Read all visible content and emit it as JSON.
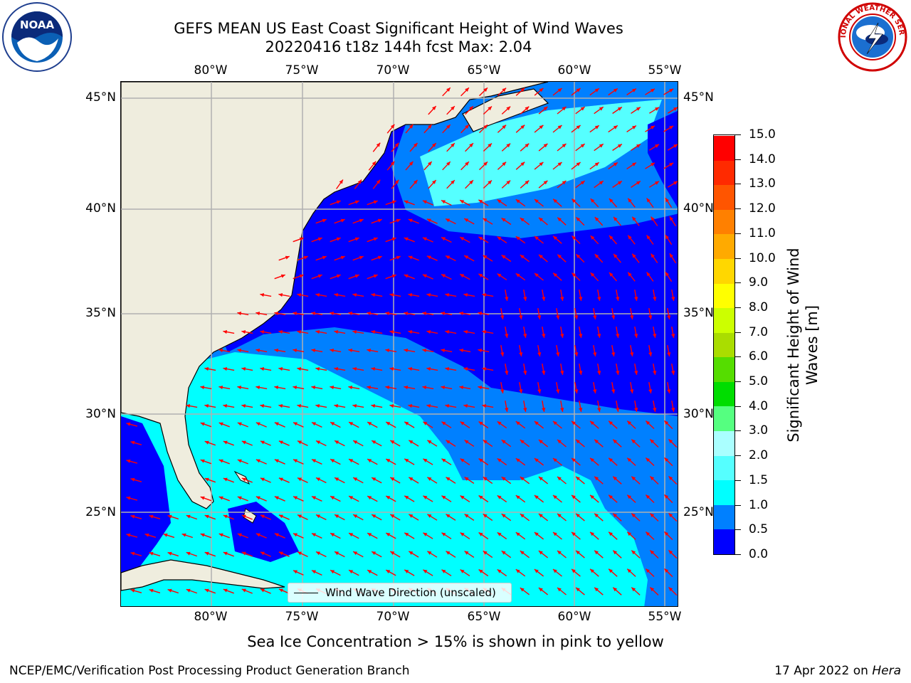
{
  "title_line1": "GEFS MEAN US East Coast Significant Height of Wind Waves",
  "title_line2": "20220416 t18z 144h fcst   Max: 2.04",
  "logos": {
    "left": {
      "icon": "noaa-logo",
      "text": "NOAA"
    },
    "right": {
      "icon": "nws-logo",
      "text": "NATIONAL WEATHER SERVICE"
    }
  },
  "longitude_ticks": [
    "80°W",
    "75°W",
    "70°W",
    "65°W",
    "60°W",
    "55°W"
  ],
  "latitude_ticks": [
    "45°N",
    "40°N",
    "35°N",
    "30°N",
    "25°N"
  ],
  "map": {
    "land_color": "#efedde",
    "grid_color": "#b0b0b0",
    "arrow_color": "#ff0000",
    "legend_label": "Wind Wave Direction (unscaled)"
  },
  "colorbar": {
    "title_line1": "Significant Height of Wind",
    "title_line2": "Waves [m]",
    "tick_labels": [
      "0.0",
      "0.5",
      "1.0",
      "1.5",
      "2.0",
      "3.0",
      "4.0",
      "5.0",
      "6.0",
      "7.0",
      "8.0",
      "9.0",
      "10.0",
      "11.0",
      "12.0",
      "13.0",
      "14.0",
      "15.0"
    ],
    "colors": [
      "#0000ff",
      "#0080ff",
      "#00ffff",
      "#55ffff",
      "#aaffff",
      "#55ff80",
      "#00dd00",
      "#55dd00",
      "#aadd00",
      "#ccff00",
      "#ffff00",
      "#ffd700",
      "#ffaa00",
      "#ff8000",
      "#ff5500",
      "#ff2a00",
      "#ff0000"
    ]
  },
  "caption": "Sea Ice Concentration > 15% is shown in pink to yellow",
  "footer_left": "NCEP/EMC/Verification Post Processing Product Generation Branch",
  "footer_right_date": "17 Apr 2022 on",
  "footer_right_host": "Hera"
}
